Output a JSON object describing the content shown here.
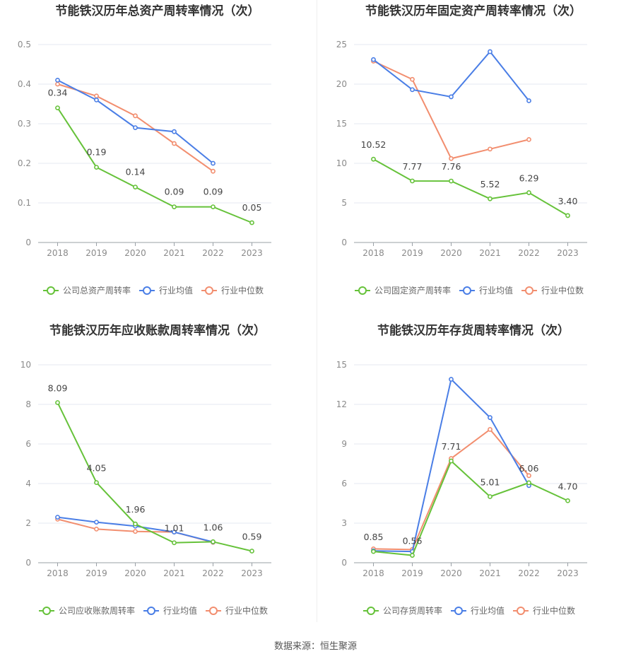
{
  "source": "数据来源：恒生聚源",
  "colors": {
    "company": "#66c23a",
    "avg": "#4a7ee6",
    "median": "#f28e6f"
  },
  "chart_data": [
    {
      "type": "line",
      "title": "节能铁汉历年总资产周转率情况（次）",
      "x": [
        "2018",
        "2019",
        "2020",
        "2021",
        "2022",
        "2023"
      ],
      "ylim": [
        0,
        0.5
      ],
      "yticks": [
        "0",
        "0.1",
        "0.2",
        "0.3",
        "0.4",
        "0.5"
      ],
      "ytick_values": [
        0,
        0.1,
        0.2,
        0.3,
        0.4,
        0.5
      ],
      "series": [
        {
          "name": "公司总资产周转率",
          "key": "company",
          "values": [
            0.34,
            0.19,
            0.14,
            0.09,
            0.09,
            0.05
          ],
          "labels": [
            "0.34",
            "0.19",
            "0.14",
            "0.09",
            "0.09",
            "0.05"
          ]
        },
        {
          "name": "行业均值",
          "key": "avg",
          "values": [
            0.41,
            0.36,
            0.29,
            0.28,
            0.2,
            null
          ]
        },
        {
          "name": "行业中位数",
          "key": "median",
          "values": [
            0.4,
            0.37,
            0.32,
            0.25,
            0.18,
            null
          ]
        }
      ]
    },
    {
      "type": "line",
      "title": "节能铁汉历年固定资产周转率情况（次）",
      "x": [
        "2018",
        "2019",
        "2020",
        "2021",
        "2022",
        "2023"
      ],
      "ylim": [
        0,
        25
      ],
      "yticks": [
        "0",
        "5",
        "10",
        "15",
        "20",
        "25"
      ],
      "ytick_values": [
        0,
        5,
        10,
        15,
        20,
        25
      ],
      "series": [
        {
          "name": "公司固定资产周转率",
          "key": "company",
          "values": [
            10.52,
            7.77,
            7.76,
            5.52,
            6.29,
            3.4
          ],
          "labels": [
            "10.52",
            "7.77",
            "7.76",
            "5.52",
            "6.29",
            "3.40"
          ]
        },
        {
          "name": "行业均值",
          "key": "avg",
          "values": [
            23.1,
            19.3,
            18.4,
            24.1,
            17.9,
            null
          ]
        },
        {
          "name": "行业中位数",
          "key": "median",
          "values": [
            22.9,
            20.6,
            10.6,
            11.8,
            13.0,
            null
          ]
        }
      ]
    },
    {
      "type": "line",
      "title": "节能铁汉历年应收账款周转率情况（次）",
      "x": [
        "2018",
        "2019",
        "2020",
        "2021",
        "2022",
        "2023"
      ],
      "ylim": [
        0,
        10
      ],
      "yticks": [
        "0",
        "2",
        "4",
        "6",
        "8",
        "10"
      ],
      "ytick_values": [
        0,
        2,
        4,
        6,
        8,
        10
      ],
      "series": [
        {
          "name": "公司应收账款周转率",
          "key": "company",
          "values": [
            8.09,
            4.05,
            1.96,
            1.01,
            1.06,
            0.59
          ],
          "labels": [
            "8.09",
            "4.05",
            "1.96",
            "1.01",
            "1.06",
            "0.59"
          ]
        },
        {
          "name": "行业均值",
          "key": "avg",
          "values": [
            2.3,
            2.05,
            1.85,
            1.55,
            1.05,
            null
          ]
        },
        {
          "name": "行业中位数",
          "key": "median",
          "values": [
            2.2,
            1.7,
            1.58,
            1.55,
            1.03,
            null
          ]
        }
      ]
    },
    {
      "type": "line",
      "title": "节能铁汉历年存货周转率情况（次）",
      "x": [
        "2018",
        "2019",
        "2020",
        "2021",
        "2022",
        "2023"
      ],
      "ylim": [
        0,
        15
      ],
      "yticks": [
        "0",
        "3",
        "6",
        "9",
        "12",
        "15"
      ],
      "ytick_values": [
        0,
        3,
        6,
        9,
        12,
        15
      ],
      "series": [
        {
          "name": "公司存货周转率",
          "key": "company",
          "values": [
            0.85,
            0.56,
            7.71,
            5.01,
            6.06,
            4.7
          ],
          "labels": [
            "0.85",
            "0.56",
            "7.71",
            "5.01",
            "6.06",
            "4.70"
          ]
        },
        {
          "name": "行业均值",
          "key": "avg",
          "values": [
            0.9,
            0.85,
            13.9,
            11.0,
            5.85,
            null
          ]
        },
        {
          "name": "行业中位数",
          "key": "median",
          "values": [
            1.05,
            1.0,
            7.9,
            10.1,
            6.6,
            null
          ]
        }
      ]
    }
  ]
}
